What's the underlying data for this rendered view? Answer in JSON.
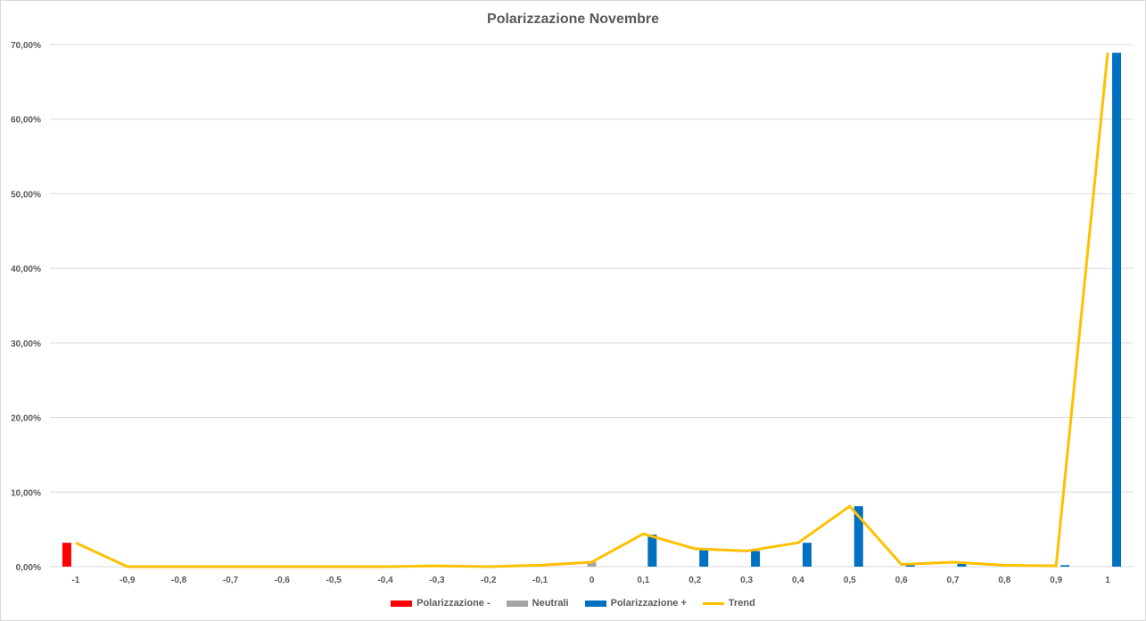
{
  "chart_data": {
    "type": "bar",
    "title": "Polarizzazione Novembre",
    "categories": [
      "-1",
      "-0,9",
      "-0,8",
      "-0,7",
      "-0,6",
      "-0,5",
      "-0,4",
      "-0,3",
      "-0,2",
      "-0,1",
      "0",
      "0,1",
      "0,2",
      "0,3",
      "0,4",
      "0,5",
      "0,6",
      "0,7",
      "0,8",
      "0,9",
      "1"
    ],
    "y_ticks": [
      "0,00%",
      "10,00%",
      "20,00%",
      "30,00%",
      "40,00%",
      "50,00%",
      "60,00%",
      "70,00%"
    ],
    "ylim": [
      0,
      70
    ],
    "y_unit": "%",
    "grid": true,
    "legend_position": "bottom",
    "series": [
      {
        "name": "Polarizzazione -",
        "kind": "bar",
        "color": "#ff0000",
        "values": [
          3.2,
          0,
          0,
          0,
          0,
          0,
          0,
          0.1,
          0,
          0.1,
          0,
          0,
          0,
          0,
          0,
          0,
          0,
          0,
          0,
          0,
          0
        ]
      },
      {
        "name": "Neutrali",
        "kind": "bar",
        "color": "#a5a5a5",
        "values": [
          0,
          0,
          0,
          0,
          0,
          0,
          0,
          0,
          0,
          0,
          0.6,
          0,
          0,
          0,
          0,
          0,
          0,
          0,
          0,
          0,
          0
        ]
      },
      {
        "name": "Polarizzazione +",
        "kind": "bar",
        "color": "#0070c0",
        "values": [
          0,
          0,
          0,
          0,
          0,
          0,
          0,
          0,
          0,
          0,
          0,
          4.3,
          2.3,
          2.1,
          3.2,
          8.1,
          0.3,
          0.5,
          0.2,
          0.2,
          68.9
        ]
      },
      {
        "name": "Trend",
        "kind": "line",
        "color": "#ffc000",
        "values": [
          3.2,
          0,
          0,
          0,
          0,
          0,
          0,
          0.1,
          0,
          0.2,
          0.6,
          4.4,
          2.4,
          2.1,
          3.2,
          8.1,
          0.3,
          0.6,
          0.2,
          0.1,
          68.9
        ]
      }
    ]
  }
}
